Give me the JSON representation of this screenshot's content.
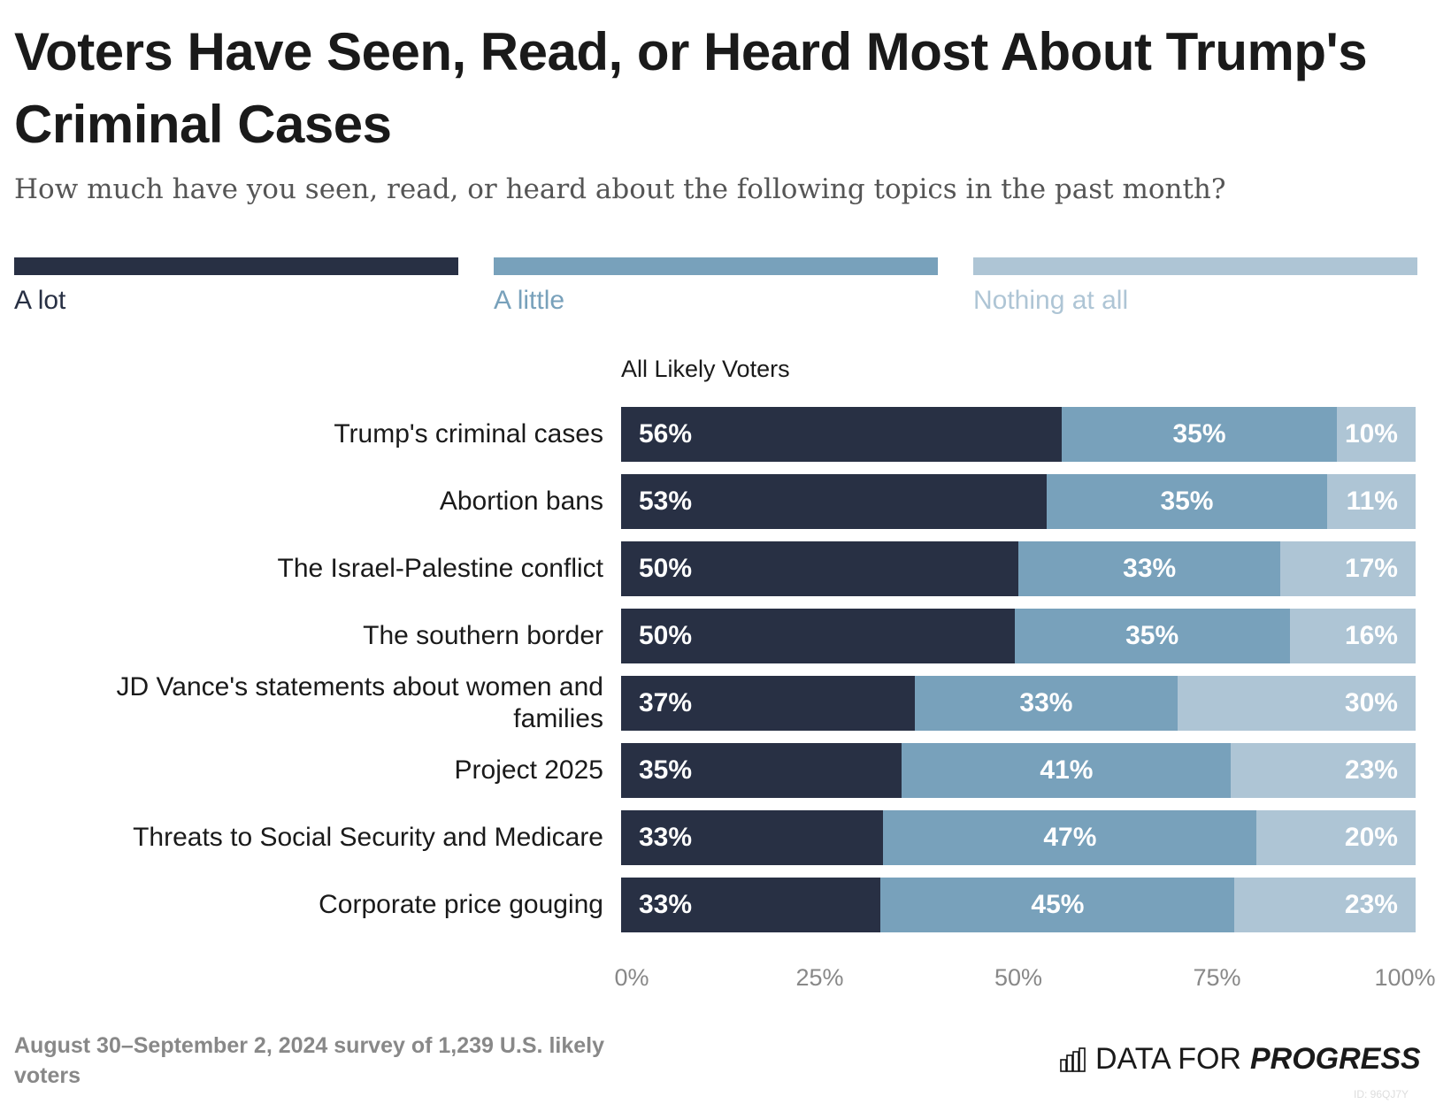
{
  "title": "Voters Have Seen, Read, or Heard Most About Trump's Criminal Cases",
  "subtitle": "How much have you seen, read, or heard about the following topics in the past month?",
  "group_label": "All Likely Voters",
  "footer": "August 30–September 2, 2024 survey of 1,239 U.S. likely voters",
  "logo": {
    "text1": "DATA FOR",
    "text2": "PROGRESS"
  },
  "id_text": "ID: 96QJ7Y",
  "chart_data": {
    "type": "bar",
    "orientation": "horizontal",
    "stacked": true,
    "title": "Voters Have Seen, Read, or Heard Most About Trump's Criminal Cases",
    "categories": [
      "Trump's criminal cases",
      "Abortion bans",
      "The Israel-Palestine conflict",
      "The southern border",
      "JD Vance's statements about women and families",
      "Project 2025",
      "Threats to Social Security and Medicare",
      "Corporate price gouging"
    ],
    "series": [
      {
        "name": "A lot",
        "color": "#283044",
        "values": [
          56,
          53,
          50,
          50,
          37,
          35,
          33,
          33
        ]
      },
      {
        "name": "A little",
        "color": "#78a1bb",
        "values": [
          35,
          35,
          33,
          35,
          33,
          41,
          47,
          45
        ]
      },
      {
        "name": "Nothing at all",
        "color": "#aec5d5",
        "values": [
          10,
          11,
          17,
          16,
          30,
          23,
          20,
          23
        ]
      }
    ],
    "xlim": [
      0,
      100
    ],
    "xticks": [
      "0%",
      "25%",
      "50%",
      "75%",
      "100%"
    ],
    "legend": "top",
    "grid": false
  }
}
